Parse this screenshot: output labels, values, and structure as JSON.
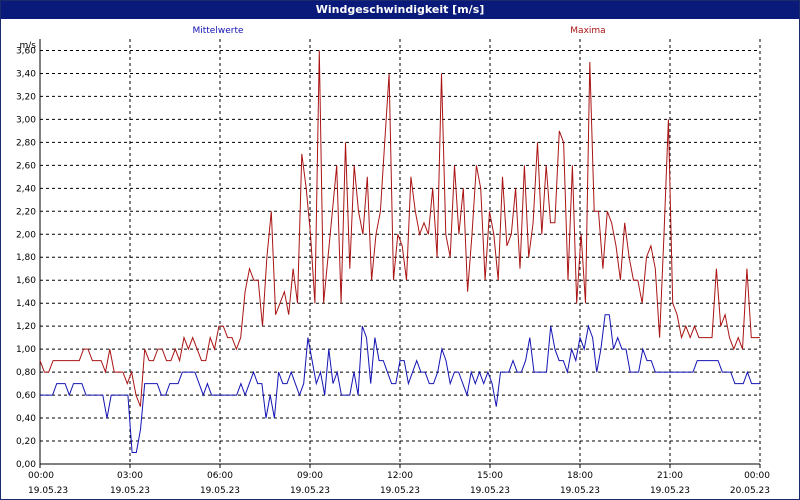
{
  "window": {
    "title": "Windgeschwindigkeit [m/s]"
  },
  "chart_data": {
    "type": "line",
    "title": "Windgeschwindigkeit [m/s]",
    "ylabel": "m/s",
    "xlabel": "",
    "ylim": [
      0,
      3.7
    ],
    "xlim": [
      0,
      24
    ],
    "grid": true,
    "yticks": [
      "0,00",
      "0,20",
      "0,40",
      "0,60",
      "0,80",
      "1,00",
      "1,20",
      "1,40",
      "1,60",
      "1,80",
      "2,00",
      "2,20",
      "2,40",
      "2,60",
      "2,80",
      "3,00",
      "3,20",
      "3,40",
      "3,60"
    ],
    "xticks": [
      {
        "time": "00:00",
        "date": "19.05.23"
      },
      {
        "time": "03:00",
        "date": "19.05.23"
      },
      {
        "time": "06:00",
        "date": "19.05.23"
      },
      {
        "time": "09:00",
        "date": "19.05.23"
      },
      {
        "time": "12:00",
        "date": "19.05.23"
      },
      {
        "time": "15:00",
        "date": "19.05.23"
      },
      {
        "time": "18:00",
        "date": "19.05.23"
      },
      {
        "time": "21:00",
        "date": "19.05.23"
      },
      {
        "time": "00:00",
        "date": "20.05.23"
      }
    ],
    "series": [
      {
        "name": "Mittelwerte",
        "color": "#1414b4",
        "values": [
          0.6,
          0.6,
          0.6,
          0.6,
          0.7,
          0.7,
          0.7,
          0.6,
          0.7,
          0.7,
          0.7,
          0.6,
          0.6,
          0.6,
          0.6,
          0.6,
          0.4,
          0.6,
          0.6,
          0.6,
          0.6,
          0.6,
          0.1,
          0.1,
          0.3,
          0.7,
          0.7,
          0.7,
          0.7,
          0.6,
          0.6,
          0.7,
          0.7,
          0.7,
          0.8,
          0.8,
          0.8,
          0.8,
          0.7,
          0.6,
          0.7,
          0.6,
          0.6,
          0.6,
          0.6,
          0.6,
          0.6,
          0.6,
          0.7,
          0.6,
          0.7,
          0.8,
          0.7,
          0.7,
          0.4,
          0.6,
          0.4,
          0.8,
          0.7,
          0.7,
          0.8,
          0.7,
          0.6,
          0.7,
          1.1,
          0.9,
          0.7,
          0.8,
          0.6,
          1.0,
          0.7,
          0.8,
          0.6,
          0.6,
          0.6,
          0.8,
          0.6,
          1.2,
          1.1,
          0.7,
          1.1,
          0.9,
          0.9,
          0.8,
          0.7,
          0.7,
          0.9,
          0.9,
          0.7,
          0.8,
          0.9,
          0.8,
          0.8,
          0.7,
          0.7,
          0.8,
          1.0,
          0.9,
          0.7,
          0.8,
          0.8,
          0.7,
          0.6,
          0.8,
          0.7,
          0.8,
          0.7,
          0.8,
          0.7,
          0.5,
          0.8,
          0.8,
          0.8,
          0.9,
          0.8,
          0.8,
          0.9,
          1.1,
          0.8,
          0.8,
          0.8,
          0.8,
          1.2,
          1.0,
          0.9,
          0.9,
          0.8,
          1.0,
          0.9,
          1.1,
          1.0,
          1.2,
          1.1,
          0.8,
          1.0,
          1.3,
          1.3,
          1.0,
          1.1,
          1.0,
          1.0,
          0.8,
          0.8,
          0.8,
          1.0,
          0.9,
          0.9,
          0.8,
          0.8,
          0.8,
          0.8,
          0.8,
          0.8,
          0.8,
          0.8,
          0.8,
          0.8,
          0.9,
          0.9,
          0.9,
          0.9,
          0.9,
          0.9,
          0.8,
          0.8,
          0.8,
          0.7,
          0.7,
          0.7,
          0.8,
          0.7,
          0.7,
          0.7
        ]
      },
      {
        "name": "Maxima",
        "color": "#aa1414",
        "values": [
          0.9,
          0.8,
          0.8,
          0.9,
          0.9,
          0.9,
          0.9,
          0.9,
          0.9,
          0.9,
          1.0,
          1.0,
          0.9,
          0.9,
          0.9,
          0.8,
          1.0,
          0.8,
          0.8,
          0.8,
          0.7,
          0.8,
          0.6,
          0.5,
          1.0,
          0.9,
          0.9,
          1.0,
          1.0,
          0.9,
          0.9,
          1.0,
          0.9,
          1.1,
          1.0,
          1.1,
          1.0,
          0.9,
          0.9,
          1.1,
          1.0,
          1.2,
          1.2,
          1.1,
          1.1,
          1.0,
          1.1,
          1.5,
          1.7,
          1.6,
          1.6,
          1.2,
          1.8,
          2.2,
          1.3,
          1.4,
          1.5,
          1.3,
          1.7,
          1.4,
          2.7,
          2.4,
          2.0,
          1.4,
          3.6,
          1.4,
          1.8,
          2.2,
          2.6,
          1.4,
          2.8,
          1.7,
          2.6,
          2.2,
          2.0,
          2.5,
          1.6,
          2.0,
          2.2,
          2.8,
          3.4,
          1.6,
          2.0,
          1.9,
          1.6,
          2.5,
          2.2,
          2.0,
          2.1,
          2.0,
          2.4,
          1.8,
          3.4,
          2.0,
          1.8,
          2.6,
          2.0,
          2.4,
          1.5,
          2.0,
          2.6,
          2.4,
          1.6,
          2.2,
          2.0,
          1.6,
          2.5,
          1.9,
          2.0,
          2.4,
          1.7,
          2.6,
          1.8,
          2.1,
          2.8,
          2.0,
          2.6,
          2.1,
          2.1,
          2.9,
          2.8,
          1.6,
          2.6,
          1.4,
          2.0,
          1.4,
          3.5,
          2.2,
          2.2,
          1.7,
          2.2,
          2.1,
          1.9,
          1.6,
          2.1,
          1.8,
          1.6,
          1.6,
          1.4,
          1.8,
          1.9,
          1.7,
          1.1,
          2.0,
          3.0,
          1.4,
          1.3,
          1.1,
          1.2,
          1.1,
          1.2,
          1.1,
          1.1,
          1.1,
          1.1,
          1.7,
          1.2,
          1.3,
          1.1,
          1.0,
          1.1,
          1.0,
          1.7,
          1.1,
          1.1,
          1.1
        ]
      }
    ]
  }
}
